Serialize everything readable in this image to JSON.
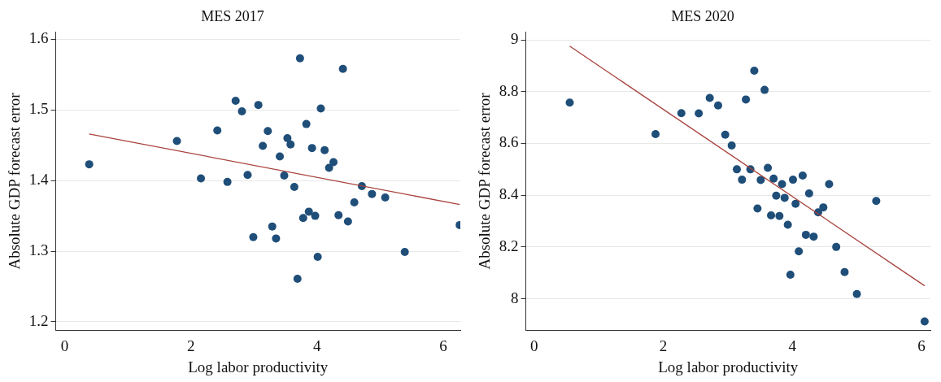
{
  "chart_data": [
    {
      "type": "scatter",
      "title": "MES 2017",
      "xlabel": "Log labor productivity",
      "ylabel": "Absolute GDP forecast error",
      "xlim": [
        -0.14,
        6.27
      ],
      "ylim": [
        1.188,
        1.61
      ],
      "xticks": [
        0,
        2,
        4,
        6
      ],
      "yticks": [
        1.2,
        1.3,
        1.4,
        1.5,
        1.6
      ],
      "grid": "y",
      "series": [
        {
          "marker": "circle",
          "color": "#1f4e79",
          "x": [
            0.39,
            1.78,
            2.16,
            2.42,
            2.58,
            2.71,
            2.81,
            2.9,
            2.99,
            3.07,
            3.14,
            3.22,
            3.29,
            3.35,
            3.41,
            3.48,
            3.53,
            3.58,
            3.64,
            3.69,
            3.73,
            3.78,
            3.83,
            3.87,
            3.92,
            3.97,
            4.01,
            4.06,
            4.12,
            4.19,
            4.26,
            4.34,
            4.41,
            4.49,
            4.59,
            4.71,
            4.87,
            5.08,
            5.39,
            6.26
          ],
          "values": [
            1.423,
            1.456,
            1.403,
            1.471,
            1.398,
            1.513,
            1.498,
            1.408,
            1.32,
            1.507,
            1.449,
            1.47,
            1.335,
            1.318,
            1.434,
            1.407,
            1.46,
            1.451,
            1.391,
            1.261,
            1.573,
            1.347,
            1.48,
            1.356,
            1.446,
            1.35,
            1.292,
            1.502,
            1.443,
            1.418,
            1.426,
            1.351,
            1.558,
            1.342,
            1.369,
            1.392,
            1.381,
            1.376,
            1.299,
            1.337
          ]
        },
        {
          "type": "line",
          "marker": "none",
          "color": "#a8423c",
          "x": [
            0.39,
            6.26
          ],
          "values": [
            1.466,
            1.366
          ]
        }
      ]
    },
    {
      "type": "scatter",
      "title": "MES 2020",
      "xlabel": "Log labor productivity",
      "ylabel": "Absolute GDP forecast error",
      "xlim": [
        -0.13,
        6.14
      ],
      "ylim": [
        7.878,
        9.03
      ],
      "xticks": [
        0,
        2,
        4,
        6
      ],
      "yticks": [
        8,
        8.2,
        8.4,
        8.6,
        8.8,
        9
      ],
      "grid": "y",
      "series": [
        {
          "marker": "circle",
          "color": "#1f4e79",
          "x": [
            0.55,
            1.88,
            2.28,
            2.55,
            2.72,
            2.85,
            2.96,
            3.06,
            3.14,
            3.22,
            3.28,
            3.35,
            3.41,
            3.46,
            3.51,
            3.57,
            3.62,
            3.67,
            3.71,
            3.75,
            3.8,
            3.84,
            3.88,
            3.93,
            3.97,
            4.01,
            4.05,
            4.1,
            4.16,
            4.21,
            4.26,
            4.33,
            4.4,
            4.48,
            4.57,
            4.68,
            4.81,
            5.0,
            5.3,
            6.05
          ],
          "values": [
            8.758,
            8.636,
            8.717,
            8.716,
            8.776,
            8.747,
            8.634,
            8.592,
            8.5,
            8.46,
            8.77,
            8.5,
            8.881,
            8.349,
            8.459,
            8.807,
            8.506,
            8.322,
            8.464,
            8.398,
            8.32,
            8.443,
            8.39,
            8.286,
            8.093,
            8.46,
            8.367,
            8.183,
            8.476,
            8.247,
            8.407,
            8.24,
            8.334,
            8.353,
            8.443,
            8.2,
            8.103,
            8.018,
            8.378,
            7.912
          ]
        },
        {
          "type": "line",
          "marker": "none",
          "color": "#a8423c",
          "x": [
            0.55,
            6.05
          ],
          "values": [
            8.976,
            8.05
          ]
        }
      ]
    }
  ]
}
